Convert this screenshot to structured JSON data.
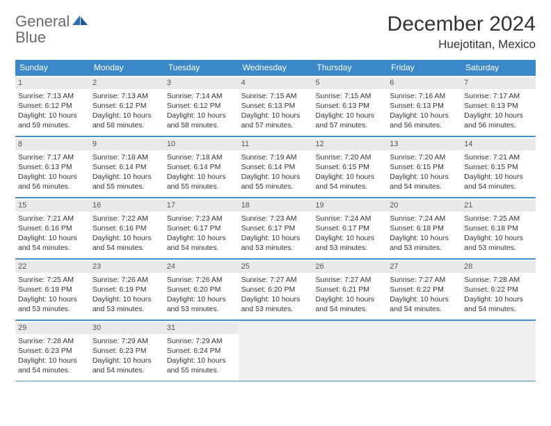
{
  "logo": {
    "text1": "General",
    "text2": "Blue"
  },
  "title": "December 2024",
  "location": "Huejotitan, Mexico",
  "colors": {
    "header_bg": "#3b88c9",
    "header_text": "#ffffff",
    "border": "#4a8cc2",
    "daynum_bg": "#e9e9e9",
    "empty_bg": "#efefef",
    "logo_gray": "#6b6b6b",
    "logo_blue": "#2a6fb5"
  },
  "weekdays": [
    "Sunday",
    "Monday",
    "Tuesday",
    "Wednesday",
    "Thursday",
    "Friday",
    "Saturday"
  ],
  "days": [
    {
      "n": 1,
      "sr": "7:13 AM",
      "ss": "6:12 PM",
      "dl": "10 hours and 59 minutes."
    },
    {
      "n": 2,
      "sr": "7:13 AM",
      "ss": "6:12 PM",
      "dl": "10 hours and 58 minutes."
    },
    {
      "n": 3,
      "sr": "7:14 AM",
      "ss": "6:12 PM",
      "dl": "10 hours and 58 minutes."
    },
    {
      "n": 4,
      "sr": "7:15 AM",
      "ss": "6:13 PM",
      "dl": "10 hours and 57 minutes."
    },
    {
      "n": 5,
      "sr": "7:15 AM",
      "ss": "6:13 PM",
      "dl": "10 hours and 57 minutes."
    },
    {
      "n": 6,
      "sr": "7:16 AM",
      "ss": "6:13 PM",
      "dl": "10 hours and 56 minutes."
    },
    {
      "n": 7,
      "sr": "7:17 AM",
      "ss": "6:13 PM",
      "dl": "10 hours and 56 minutes."
    },
    {
      "n": 8,
      "sr": "7:17 AM",
      "ss": "6:13 PM",
      "dl": "10 hours and 56 minutes."
    },
    {
      "n": 9,
      "sr": "7:18 AM",
      "ss": "6:14 PM",
      "dl": "10 hours and 55 minutes."
    },
    {
      "n": 10,
      "sr": "7:18 AM",
      "ss": "6:14 PM",
      "dl": "10 hours and 55 minutes."
    },
    {
      "n": 11,
      "sr": "7:19 AM",
      "ss": "6:14 PM",
      "dl": "10 hours and 55 minutes."
    },
    {
      "n": 12,
      "sr": "7:20 AM",
      "ss": "6:15 PM",
      "dl": "10 hours and 54 minutes."
    },
    {
      "n": 13,
      "sr": "7:20 AM",
      "ss": "6:15 PM",
      "dl": "10 hours and 54 minutes."
    },
    {
      "n": 14,
      "sr": "7:21 AM",
      "ss": "6:15 PM",
      "dl": "10 hours and 54 minutes."
    },
    {
      "n": 15,
      "sr": "7:21 AM",
      "ss": "6:16 PM",
      "dl": "10 hours and 54 minutes."
    },
    {
      "n": 16,
      "sr": "7:22 AM",
      "ss": "6:16 PM",
      "dl": "10 hours and 54 minutes."
    },
    {
      "n": 17,
      "sr": "7:23 AM",
      "ss": "6:17 PM",
      "dl": "10 hours and 54 minutes."
    },
    {
      "n": 18,
      "sr": "7:23 AM",
      "ss": "6:17 PM",
      "dl": "10 hours and 53 minutes."
    },
    {
      "n": 19,
      "sr": "7:24 AM",
      "ss": "6:17 PM",
      "dl": "10 hours and 53 minutes."
    },
    {
      "n": 20,
      "sr": "7:24 AM",
      "ss": "6:18 PM",
      "dl": "10 hours and 53 minutes."
    },
    {
      "n": 21,
      "sr": "7:25 AM",
      "ss": "6:18 PM",
      "dl": "10 hours and 53 minutes."
    },
    {
      "n": 22,
      "sr": "7:25 AM",
      "ss": "6:19 PM",
      "dl": "10 hours and 53 minutes."
    },
    {
      "n": 23,
      "sr": "7:26 AM",
      "ss": "6:19 PM",
      "dl": "10 hours and 53 minutes."
    },
    {
      "n": 24,
      "sr": "7:26 AM",
      "ss": "6:20 PM",
      "dl": "10 hours and 53 minutes."
    },
    {
      "n": 25,
      "sr": "7:27 AM",
      "ss": "6:20 PM",
      "dl": "10 hours and 53 minutes."
    },
    {
      "n": 26,
      "sr": "7:27 AM",
      "ss": "6:21 PM",
      "dl": "10 hours and 54 minutes."
    },
    {
      "n": 27,
      "sr": "7:27 AM",
      "ss": "6:22 PM",
      "dl": "10 hours and 54 minutes."
    },
    {
      "n": 28,
      "sr": "7:28 AM",
      "ss": "6:22 PM",
      "dl": "10 hours and 54 minutes."
    },
    {
      "n": 29,
      "sr": "7:28 AM",
      "ss": "6:23 PM",
      "dl": "10 hours and 54 minutes."
    },
    {
      "n": 30,
      "sr": "7:29 AM",
      "ss": "6:23 PM",
      "dl": "10 hours and 54 minutes."
    },
    {
      "n": 31,
      "sr": "7:29 AM",
      "ss": "6:24 PM",
      "dl": "10 hours and 55 minutes."
    }
  ],
  "labels": {
    "sunrise": "Sunrise:",
    "sunset": "Sunset:",
    "daylight": "Daylight:"
  },
  "trailing_empty": 4
}
